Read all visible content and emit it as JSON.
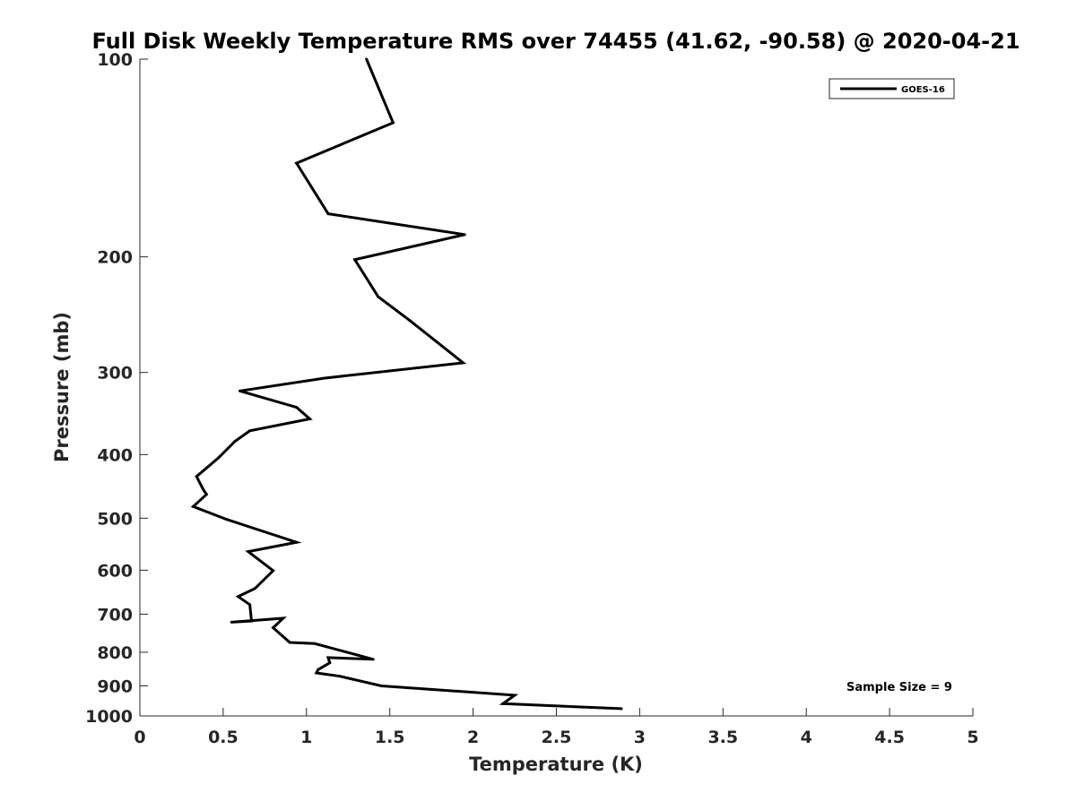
{
  "chart_data": {
    "type": "line",
    "title": "Full Disk Weekly Temperature RMS over 74455 (41.62, -90.58) @ 2020-04-21",
    "xlabel": "Temperature (K)",
    "ylabel": "Pressure (mb)",
    "xlim": [
      0,
      5
    ],
    "ylim": [
      100,
      1000
    ],
    "y_scale": "log",
    "y_reversed": true,
    "x_ticks": [
      0,
      0.5,
      1,
      1.5,
      2,
      2.5,
      3,
      3.5,
      4,
      4.5,
      5
    ],
    "x_tick_labels": [
      "0",
      "0.5",
      "1",
      "1.5",
      "2",
      "2.5",
      "3",
      "3.5",
      "4",
      "4.5",
      "5"
    ],
    "y_ticks": [
      100,
      200,
      300,
      400,
      500,
      600,
      700,
      800,
      900,
      1000
    ],
    "y_tick_labels": [
      "100",
      "200",
      "300",
      "400",
      "500",
      "600",
      "700",
      "800",
      "900",
      "1000"
    ],
    "grid": false,
    "legend": {
      "placement": "top-right",
      "entries": [
        "GOES-16"
      ]
    },
    "annotation": "Sample Size = 9",
    "series": [
      {
        "name": "GOES-16",
        "color": "#000000",
        "x": [
          1.36,
          1.52,
          0.94,
          1.13,
          1.95,
          1.29,
          1.43,
          1.62,
          1.94,
          1.11,
          0.6,
          0.94,
          1.02,
          0.66,
          0.57,
          0.47,
          0.34,
          0.38,
          0.4,
          0.32,
          0.52,
          0.94,
          0.65,
          0.8,
          0.69,
          0.59,
          0.66,
          0.67,
          0.55,
          0.86,
          0.8,
          0.9,
          1.05,
          1.4,
          1.13,
          1.14,
          1.07,
          1.06,
          1.2,
          1.45,
          2.25,
          2.18,
          2.89
        ],
        "y": [
          100,
          125,
          144,
          172,
          185,
          202,
          230,
          250,
          290,
          306,
          320,
          339,
          353,
          368,
          382,
          405,
          432,
          452,
          460,
          480,
          502,
          544,
          562,
          601,
          640,
          658,
          677,
          717,
          720,
          710,
          734,
          773,
          776,
          820,
          815,
          830,
          850,
          860,
          870,
          900,
          930,
          958,
          975
        ]
      }
    ]
  }
}
